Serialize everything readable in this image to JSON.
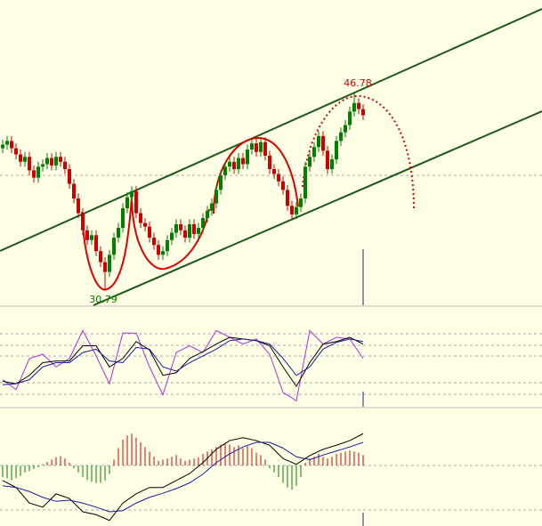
{
  "chart_data": [
    {
      "type": "candlestick",
      "up_color": "#008000",
      "down_color": "#d00000",
      "ylim": [
        29.48,
        54.41
      ],
      "annotations": [
        "46.78",
        "30.79"
      ],
      "open": [
        42.3,
        42.6,
        42.9,
        42.3,
        41.8,
        41.2,
        41.6,
        40.5,
        39.9,
        40.8,
        41.0,
        41.5,
        40.9,
        41.6,
        41.2,
        40.6,
        39.4,
        38.2,
        37.0,
        35.6,
        34.8,
        35.2,
        33.9,
        33.0,
        32.2,
        33.6,
        35.0,
        35.8,
        37.4,
        38.3,
        38.8,
        37.0,
        36.2,
        35.9,
        35.0,
        34.4,
        33.6,
        33.9,
        34.8,
        35.4,
        36.1,
        35.6,
        35.0,
        36.1,
        35.3,
        35.8,
        36.6,
        37.2,
        37.8,
        38.9,
        40.1,
        40.8,
        41.2,
        40.6,
        41.5,
        41.0,
        42.2,
        42.7,
        42.0,
        42.8,
        41.7,
        40.6,
        40.2,
        39.6,
        38.9,
        37.6,
        36.9,
        37.5,
        38.2,
        40.8,
        41.6,
        42.4,
        43.3,
        42.1,
        40.6,
        41.4,
        42.9,
        43.6,
        44.2,
        45.3,
        46.0,
        45.5
      ],
      "high": [
        43.0,
        43.3,
        43.3,
        42.7,
        42.2,
        42.0,
        42.0,
        40.9,
        41.2,
        41.4,
        41.9,
        41.9,
        42.0,
        42.0,
        41.6,
        41.0,
        39.8,
        38.6,
        37.4,
        36.0,
        35.6,
        35.6,
        34.3,
        33.4,
        34.0,
        35.4,
        36.2,
        37.8,
        38.7,
        39.2,
        39.2,
        37.4,
        36.6,
        36.3,
        35.4,
        34.8,
        34.3,
        35.2,
        35.8,
        36.5,
        36.5,
        36.0,
        36.5,
        36.5,
        36.2,
        37.0,
        37.6,
        38.2,
        39.3,
        40.5,
        41.2,
        41.6,
        41.6,
        41.9,
        41.9,
        42.6,
        43.1,
        43.1,
        43.2,
        43.2,
        42.1,
        41.0,
        40.6,
        40.0,
        39.3,
        38.0,
        37.9,
        38.6,
        41.2,
        42.0,
        42.8,
        43.7,
        43.7,
        42.5,
        41.8,
        43.3,
        44.0,
        44.6,
        45.7,
        46.78,
        46.4,
        45.9
      ],
      "low": [
        41.9,
        42.2,
        41.9,
        41.4,
        40.8,
        40.8,
        40.1,
        39.5,
        39.5,
        40.4,
        40.6,
        40.5,
        40.5,
        40.8,
        40.2,
        39.0,
        37.8,
        36.6,
        35.2,
        34.4,
        34.4,
        33.5,
        32.6,
        30.79,
        31.8,
        33.2,
        34.6,
        35.4,
        37.0,
        37.9,
        36.6,
        35.8,
        35.5,
        34.6,
        34.0,
        33.2,
        33.2,
        33.5,
        34.4,
        35.0,
        35.2,
        34.6,
        34.6,
        34.9,
        34.9,
        35.4,
        36.2,
        36.8,
        37.4,
        38.5,
        39.7,
        40.4,
        40.2,
        40.2,
        40.6,
        40.6,
        41.8,
        41.6,
        41.6,
        41.3,
        40.2,
        39.8,
        39.2,
        38.5,
        37.2,
        36.5,
        36.5,
        37.1,
        37.8,
        40.4,
        41.2,
        42.0,
        41.7,
        40.2,
        40.2,
        41.0,
        42.5,
        43.2,
        43.8,
        44.9,
        45.1,
        44.6
      ],
      "close": [
        42.6,
        42.9,
        42.3,
        41.8,
        41.2,
        41.6,
        40.5,
        39.9,
        40.8,
        41.0,
        41.5,
        40.9,
        41.6,
        41.2,
        40.6,
        39.4,
        38.2,
        37.0,
        35.6,
        34.8,
        35.2,
        33.9,
        33.0,
        32.2,
        33.6,
        35.0,
        35.8,
        37.4,
        38.3,
        38.8,
        37.0,
        36.2,
        35.9,
        35.0,
        34.4,
        33.6,
        33.9,
        34.8,
        35.4,
        36.1,
        35.6,
        35.0,
        36.1,
        35.3,
        35.8,
        36.6,
        37.2,
        37.8,
        38.9,
        40.1,
        40.8,
        41.2,
        40.6,
        41.5,
        41.0,
        42.2,
        42.7,
        42.0,
        42.8,
        41.7,
        40.6,
        40.2,
        39.6,
        38.9,
        37.6,
        36.9,
        37.5,
        38.2,
        40.8,
        41.6,
        42.4,
        43.3,
        42.1,
        40.6,
        41.4,
        42.9,
        43.6,
        44.2,
        45.3,
        46.0,
        45.5,
        45.0
      ]
    },
    {
      "type": "line",
      "ylim": [
        0,
        100
      ],
      "x": [
        0,
        3,
        6,
        9,
        12,
        15,
        18,
        21,
        24,
        27,
        30,
        33,
        36,
        39,
        42,
        45,
        48,
        51,
        54,
        57,
        60,
        63,
        66,
        69,
        72,
        75,
        78,
        81
      ],
      "series": [
        {
          "color": "#b030e0",
          "values": [
            30,
            18,
            55,
            60,
            45,
            55,
            88,
            58,
            25,
            85,
            85,
            45,
            12,
            62,
            70,
            62,
            88,
            80,
            72,
            78,
            60,
            15,
            5,
            88,
            72,
            80,
            78,
            55
          ]
        },
        {
          "color": "#000000",
          "values": [
            28,
            25,
            35,
            50,
            52,
            52,
            70,
            70,
            45,
            55,
            75,
            65,
            35,
            38,
            55,
            63,
            72,
            80,
            78,
            76,
            70,
            45,
            22,
            50,
            72,
            75,
            80,
            72
          ]
        },
        {
          "color": "#1a1aa0",
          "values": [
            24,
            25,
            30,
            45,
            50,
            50,
            62,
            66,
            52,
            50,
            68,
            66,
            45,
            40,
            50,
            58,
            66,
            76,
            78,
            76,
            72,
            55,
            35,
            45,
            66,
            74,
            78,
            75
          ]
        }
      ]
    },
    {
      "type": "macd",
      "ylim": [
        -1,
        1
      ],
      "up_color": "#d00000",
      "down_color": "#008000",
      "histogram": [
        -0.2,
        -0.22,
        -0.25,
        -0.22,
        -0.18,
        -0.12,
        -0.1,
        -0.06,
        -0.03,
        0.02,
        0.06,
        0.1,
        0.14,
        0.16,
        0.12,
        0.05,
        -0.05,
        -0.12,
        -0.2,
        -0.25,
        -0.28,
        -0.3,
        -0.3,
        -0.26,
        -0.15,
        0.1,
        0.3,
        0.45,
        0.52,
        0.55,
        0.48,
        0.4,
        0.32,
        0.24,
        0.15,
        0.08,
        0.1,
        0.12,
        0.15,
        0.18,
        0.12,
        0.08,
        0.1,
        0.12,
        0.14,
        0.2,
        0.24,
        0.28,
        0.32,
        0.36,
        0.38,
        0.36,
        0.32,
        0.35,
        0.3,
        0.33,
        0.3,
        0.22,
        0.18,
        0.1,
        -0.05,
        -0.12,
        -0.2,
        -0.3,
        -0.38,
        -0.42,
        -0.35,
        -0.2,
        0.05,
        0.12,
        0.15,
        0.2,
        0.15,
        0.12,
        0.15,
        0.2,
        0.22,
        0.24,
        0.26,
        0.24,
        0.22,
        0.18
      ],
      "x": [
        0,
        3,
        6,
        9,
        12,
        15,
        18,
        21,
        24,
        27,
        30,
        33,
        36,
        39,
        42,
        45,
        48,
        51,
        54,
        57,
        60,
        63,
        66,
        69,
        72,
        75,
        78,
        81
      ],
      "series": [
        {
          "color": "#000000",
          "values": [
            -0.26,
            -0.38,
            -0.65,
            -0.72,
            -0.49,
            -0.57,
            -0.8,
            -0.85,
            -0.95,
            -0.65,
            -0.49,
            -0.38,
            -0.38,
            -0.26,
            -0.14,
            0.05,
            0.28,
            0.43,
            0.48,
            0.43,
            0.35,
            0.12,
            0.02,
            0.17,
            0.28,
            0.35,
            0.43,
            0.55
          ]
        },
        {
          "color": "#1a1aa0",
          "values": [
            -0.35,
            -0.38,
            -0.45,
            -0.55,
            -0.62,
            -0.6,
            -0.65,
            -0.72,
            -0.8,
            -0.78,
            -0.65,
            -0.55,
            -0.48,
            -0.4,
            -0.3,
            -0.15,
            0.05,
            0.2,
            0.32,
            0.4,
            0.4,
            0.3,
            0.15,
            0.1,
            0.18,
            0.25,
            0.32,
            0.4
          ]
        }
      ]
    }
  ]
}
